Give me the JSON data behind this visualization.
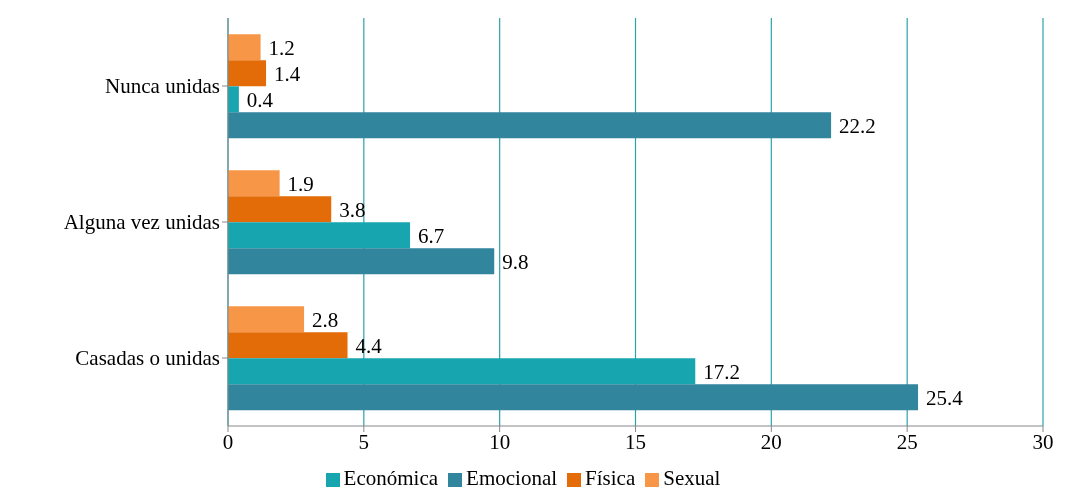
{
  "chart_data": {
    "type": "bar",
    "orientation": "horizontal",
    "categories": [
      "Nunca unidas",
      "Alguna vez unidas",
      "Casadas o unidas"
    ],
    "series": [
      {
        "name": "Sexual",
        "color": "#f79646",
        "values": [
          1.2,
          1.9,
          2.8
        ]
      },
      {
        "name": "Física",
        "color": "#e36c09",
        "values": [
          1.4,
          3.8,
          4.4
        ]
      },
      {
        "name": "Económica",
        "color": "#17a6b0",
        "values": [
          0.4,
          6.7,
          17.2
        ]
      },
      {
        "name": "Emocional",
        "color": "#31859c",
        "values": [
          22.2,
          9.8,
          25.4
        ]
      }
    ],
    "xlim": [
      0,
      30
    ],
    "xticks": [
      0,
      5,
      10,
      15,
      20,
      25,
      30
    ],
    "grid": "x",
    "legend": "bottom",
    "data_labels": true
  }
}
